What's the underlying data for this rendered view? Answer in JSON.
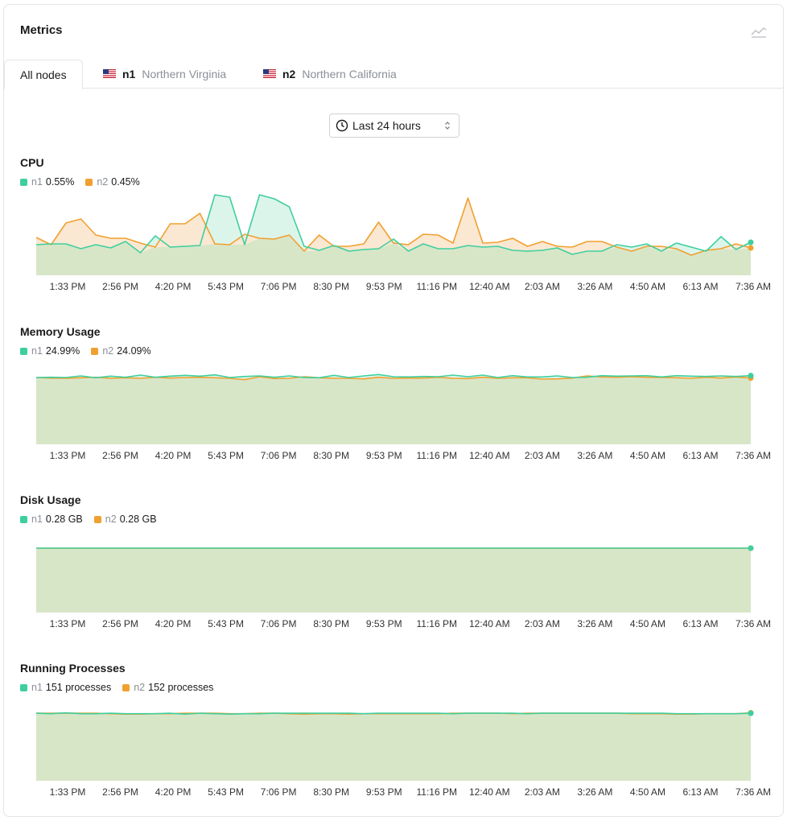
{
  "colors": {
    "n1": "#3ecf9e",
    "n2": "#f0a030",
    "fill_base": "#d8e6c8",
    "n1_fill": "#dcf5ea",
    "n2_fill": "#fbe8d2"
  },
  "header": {
    "title": "Metrics",
    "icon": "chart-line-icon"
  },
  "tabs": [
    {
      "label": "All nodes"
    },
    {
      "flag": "us-flag-icon",
      "node": "n1",
      "region": "Northern Virginia"
    },
    {
      "flag": "us-flag-icon",
      "node": "n2",
      "region": "Northern California"
    }
  ],
  "time_range": {
    "label": "Last 24 hours",
    "icon": "clock-icon"
  },
  "x_labels": [
    "1:33 PM",
    "2:56 PM",
    "4:20 PM",
    "5:43 PM",
    "7:06 PM",
    "8:30 PM",
    "9:53 PM",
    "11:16 PM",
    "12:40 AM",
    "2:03 AM",
    "3:26 AM",
    "4:50 AM",
    "6:13 AM",
    "7:36 AM"
  ],
  "charts": [
    {
      "id": "cpu",
      "title": "CPU",
      "legend": [
        {
          "node": "n1",
          "value": "0.55%"
        },
        {
          "node": "n2",
          "value": "0.45%"
        }
      ],
      "chart_data": {
        "type": "area",
        "ylim": [
          0,
          1
        ],
        "series": [
          {
            "name": "n1",
            "values": [
              0.38,
              0.39,
              0.39,
              0.33,
              0.38,
              0.34,
              0.42,
              0.28,
              0.49,
              0.35,
              0.36,
              0.37,
              1.0,
              0.97,
              0.38,
              1.0,
              0.95,
              0.85,
              0.36,
              0.31,
              0.37,
              0.3,
              0.32,
              0.33,
              0.45,
              0.3,
              0.39,
              0.33,
              0.33,
              0.37,
              0.35,
              0.36,
              0.31,
              0.3,
              0.31,
              0.34,
              0.26,
              0.3,
              0.3,
              0.38,
              0.35,
              0.39,
              0.3,
              0.4,
              0.35,
              0.3,
              0.48,
              0.32,
              0.41
            ]
          },
          {
            "name": "n2",
            "values": [
              0.47,
              0.38,
              0.65,
              0.7,
              0.5,
              0.46,
              0.46,
              0.4,
              0.35,
              0.64,
              0.64,
              0.77,
              0.39,
              0.38,
              0.51,
              0.46,
              0.45,
              0.5,
              0.3,
              0.5,
              0.36,
              0.36,
              0.39,
              0.66,
              0.4,
              0.38,
              0.51,
              0.5,
              0.4,
              0.96,
              0.4,
              0.41,
              0.46,
              0.36,
              0.42,
              0.36,
              0.35,
              0.42,
              0.42,
              0.35,
              0.3,
              0.36,
              0.36,
              0.33,
              0.25,
              0.31,
              0.33,
              0.39,
              0.34
            ]
          }
        ]
      }
    },
    {
      "id": "memory",
      "title": "Memory Usage",
      "legend": [
        {
          "node": "n1",
          "value": "24.99%"
        },
        {
          "node": "n2",
          "value": "24.09%"
        }
      ],
      "chart_data": {
        "type": "area",
        "ylim": [
          0,
          30
        ],
        "series": [
          {
            "name": "n1",
            "values": [
              24.9,
              25.0,
              24.9,
              25.5,
              24.8,
              25.4,
              25.0,
              25.8,
              25.0,
              25.4,
              25.7,
              25.4,
              25.9,
              24.9,
              25.3,
              25.5,
              25.0,
              25.5,
              24.9,
              24.8,
              25.7,
              24.9,
              25.5,
              26.0,
              25.2,
              25.1,
              25.3,
              25.2,
              25.8,
              25.2,
              25.8,
              24.9,
              25.6,
              25.1,
              25.1,
              25.5,
              24.9,
              25.0,
              25.6,
              25.4,
              25.5,
              25.6,
              25.1,
              25.6,
              25.4,
              25.3,
              25.5,
              25.3,
              25.6
            ]
          },
          {
            "name": "n2",
            "values": [
              24.9,
              24.7,
              24.6,
              24.8,
              25.0,
              24.6,
              24.8,
              24.6,
              25.0,
              24.7,
              24.9,
              25.0,
              24.8,
              24.6,
              24.1,
              25.2,
              24.5,
              24.6,
              25.2,
              24.8,
              24.6,
              24.6,
              24.4,
              25.0,
              24.6,
              24.7,
              24.7,
              25.0,
              24.6,
              24.5,
              25.0,
              24.6,
              24.8,
              24.8,
              24.3,
              24.4,
              24.7,
              25.5,
              25.1,
              25.0,
              25.2,
              25.0,
              24.9,
              24.8,
              24.6,
              25.0,
              24.7,
              25.1,
              24.7
            ]
          }
        ]
      }
    },
    {
      "id": "disk",
      "title": "Disk Usage",
      "legend": [
        {
          "node": "n1",
          "value": "0.28 GB"
        },
        {
          "node": "n2",
          "value": "0.28 GB"
        }
      ],
      "chart_data": {
        "type": "area",
        "ylim": [
          0,
          0.35
        ],
        "series": [
          {
            "name": "n1",
            "values": [
              0.28,
              0.28,
              0.28,
              0.28,
              0.28,
              0.28,
              0.28,
              0.28,
              0.28,
              0.28,
              0.28,
              0.28,
              0.28,
              0.28,
              0.28,
              0.28,
              0.28,
              0.28,
              0.28,
              0.28,
              0.28,
              0.28,
              0.28,
              0.28,
              0.28,
              0.28,
              0.28,
              0.28,
              0.28,
              0.28,
              0.28,
              0.28,
              0.28,
              0.28,
              0.28,
              0.28,
              0.28,
              0.28,
              0.28,
              0.28,
              0.28,
              0.28,
              0.28,
              0.28,
              0.28,
              0.28,
              0.28,
              0.28,
              0.28
            ]
          },
          {
            "name": "n2",
            "values": [
              0.28,
              0.28,
              0.28,
              0.28,
              0.28,
              0.28,
              0.28,
              0.28,
              0.28,
              0.28,
              0.28,
              0.28,
              0.28,
              0.28,
              0.28,
              0.28,
              0.28,
              0.28,
              0.28,
              0.28,
              0.28,
              0.28,
              0.28,
              0.28,
              0.28,
              0.28,
              0.28,
              0.28,
              0.28,
              0.28,
              0.28,
              0.28,
              0.28,
              0.28,
              0.28,
              0.28,
              0.28,
              0.28,
              0.28,
              0.28,
              0.28,
              0.28,
              0.28,
              0.28,
              0.28,
              0.28,
              0.28,
              0.28,
              0.28
            ]
          }
        ]
      }
    },
    {
      "id": "processes",
      "title": "Running Processes",
      "legend": [
        {
          "node": "n1",
          "value": "151 processes"
        },
        {
          "node": "n2",
          "value": "152 processes"
        }
      ],
      "chart_data": {
        "type": "area",
        "ylim": [
          0,
          180
        ],
        "series": [
          {
            "name": "n1",
            "values": [
              151,
              150,
              152,
              150,
              150,
              151,
              150,
              150,
              150,
              151,
              149,
              151,
              150,
              149,
              150,
              150,
              151,
              151,
              151,
              151,
              151,
              151,
              150,
              151,
              151,
              151,
              151,
              151,
              150,
              151,
              151,
              151,
              151,
              150,
              151,
              151,
              151,
              151,
              151,
              151,
              151,
              151,
              151,
              150,
              150,
              150,
              150,
              150,
              151
            ]
          },
          {
            "name": "n2",
            "values": [
              151,
              151,
              151,
              151,
              151,
              150,
              149,
              149,
              150,
              150,
              151,
              151,
              151,
              150,
              150,
              151,
              151,
              150,
              149,
              150,
              150,
              149,
              150,
              150,
              150,
              150,
              150,
              150,
              151,
              151,
              151,
              151,
              150,
              151,
              151,
              151,
              151,
              151,
              151,
              151,
              150,
              150,
              150,
              149,
              149,
              150,
              150,
              150,
              152
            ]
          }
        ]
      }
    }
  ]
}
